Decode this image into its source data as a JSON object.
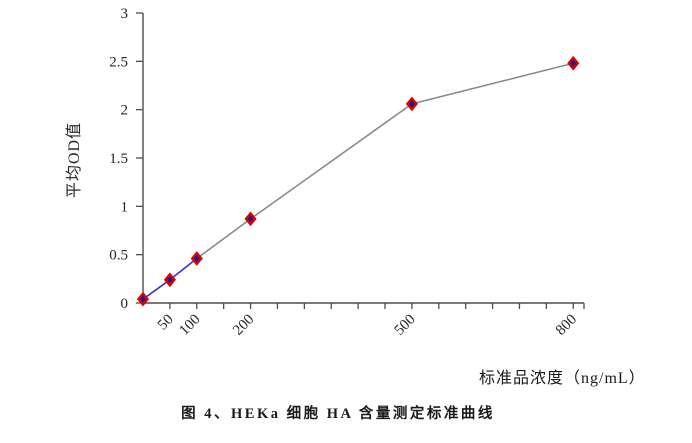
{
  "caption": "图 4、HEKa 细胞 HA 含量测定标准曲线",
  "chart_data": {
    "type": "line",
    "title": "",
    "xlabel": "标准品浓度（ng/mL）",
    "ylabel": "平均OD值",
    "x": [
      0,
      50,
      100,
      200,
      500,
      800
    ],
    "y": [
      0.04,
      0.24,
      0.46,
      0.87,
      2.06,
      2.48
    ],
    "xlim": [
      0,
      820
    ],
    "ylim": [
      0,
      3
    ],
    "x_tick_step": 50,
    "x_labeled_ticks": [
      50,
      100,
      200,
      500,
      800
    ],
    "y_ticks": [
      0,
      0.5,
      1,
      1.5,
      2,
      2.5,
      3
    ],
    "y_tick_labels": [
      "0",
      "0.5",
      "1",
      "1.5",
      "2",
      "2.5",
      "3"
    ],
    "grid": false,
    "legend": "none",
    "marker": {
      "shape": "diamond",
      "fill": "#1a1a8c",
      "border": "#dd0000"
    },
    "segment_colors": [
      "#3333cc",
      "#3333cc",
      "#8a8a8a",
      "#8a8a8a",
      "#8a8a8a"
    ],
    "axis_color": "#4d4d4d",
    "tick_text_color": "#262626"
  }
}
